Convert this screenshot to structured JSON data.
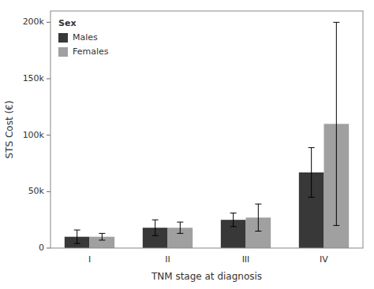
{
  "chart_data": {
    "type": "bar",
    "categories": [
      "I",
      "II",
      "III",
      "IV"
    ],
    "series": [
      {
        "name": "Males",
        "color": "#383838",
        "values": [
          10000,
          18000,
          25000,
          67000
        ],
        "errors": [
          6000,
          7000,
          6000,
          22000
        ]
      },
      {
        "name": "Females",
        "color": "#a0a0a0",
        "values": [
          10000,
          18000,
          27000,
          110000
        ],
        "errors": [
          3000,
          5000,
          12000,
          90000
        ]
      }
    ],
    "xlabel": "TNM stage at diagnosis",
    "ylabel": "STS Cost (€)",
    "ylim": [
      0,
      210000
    ],
    "yticks": [
      0,
      {
        "value": 50000,
        "label": "50k"
      },
      {
        "value": 100000,
        "label": "100k"
      },
      {
        "value": 150000,
        "label": "150k"
      },
      {
        "value": 200000,
        "label": "200k"
      }
    ],
    "legend": "upper left",
    "legend_title": "Sex",
    "grid": false
  }
}
